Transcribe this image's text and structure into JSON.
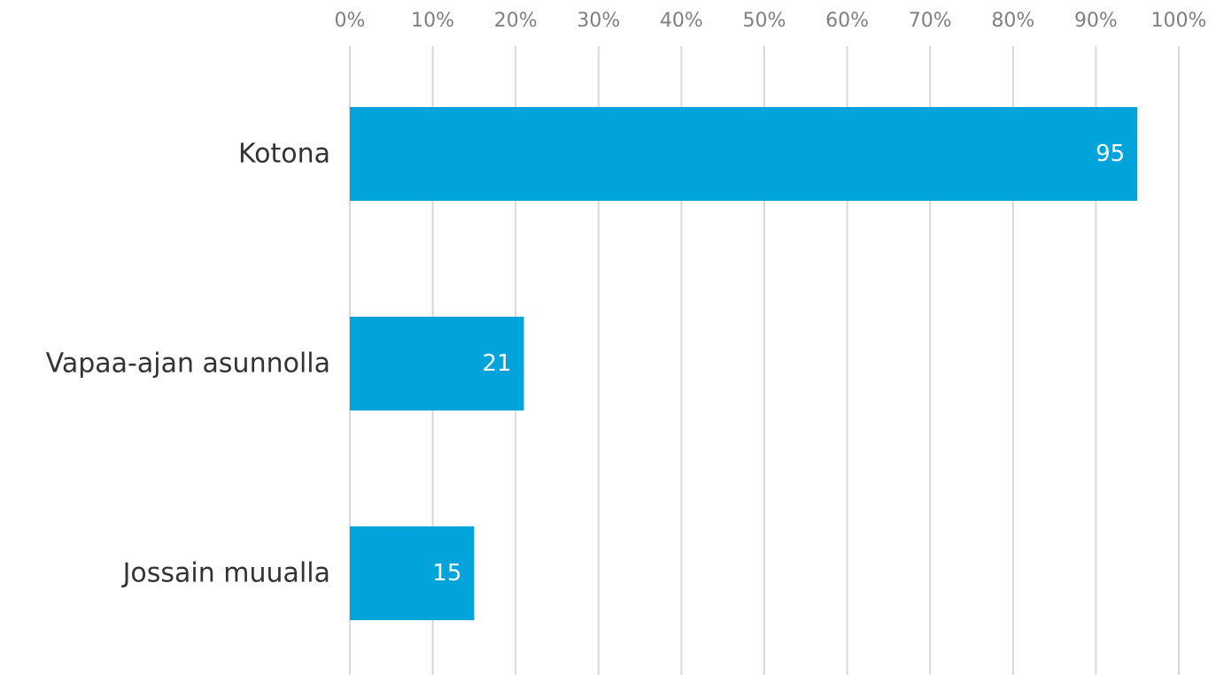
{
  "chart_data": {
    "type": "bar",
    "orientation": "horizontal",
    "categories": [
      "Kotona",
      "Vapaa-ajan asunnolla",
      "Jossain muualla"
    ],
    "values": [
      95,
      21,
      15
    ],
    "data_labels": [
      "95",
      "21",
      "15"
    ],
    "x_ticks": [
      "0%",
      "10%",
      "20%",
      "30%",
      "40%",
      "50%",
      "60%",
      "70%",
      "80%",
      "90%",
      "100%"
    ],
    "xlim": [
      0,
      100
    ],
    "x_axis_position": "top",
    "grid": true,
    "legend": "none",
    "colors": {
      "bar": "#00A3DA",
      "grid": "#D9D9D9",
      "tick_text": "#808080",
      "category_text": "#333333",
      "data_label_text": "#FFFFFF"
    }
  }
}
